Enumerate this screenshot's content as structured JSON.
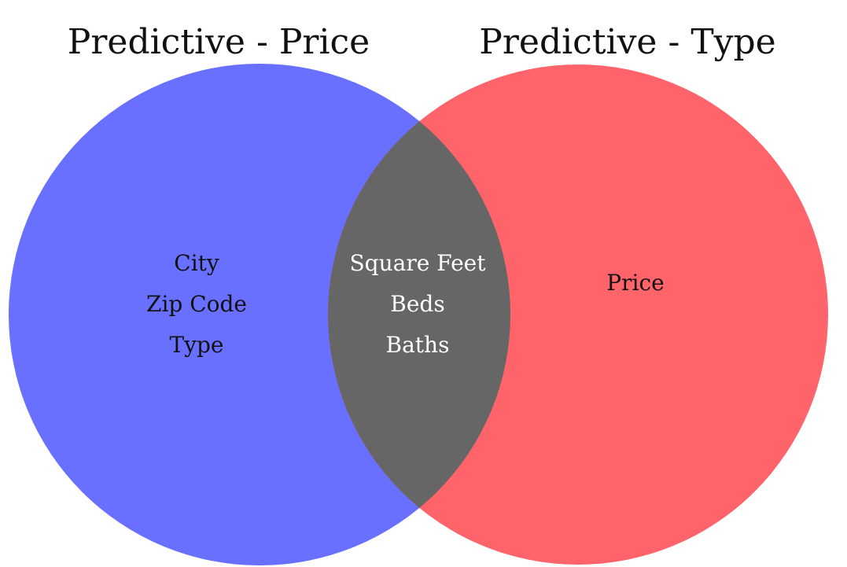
{
  "diagram": {
    "type": "venn",
    "sets": [
      {
        "title": "Predictive - Price",
        "color": "#6970ff",
        "items": [
          "City",
          "Zip Code",
          "Type"
        ],
        "text_color": "#111111"
      },
      {
        "title": "Predictive - Type",
        "color": "#ff646b",
        "items": [
          "Price"
        ],
        "text_color": "#111111"
      }
    ],
    "intersection": {
      "color": "#666666",
      "items": [
        "Square Feet",
        "Beds",
        "Baths"
      ],
      "text_color": "#ffffff"
    }
  }
}
